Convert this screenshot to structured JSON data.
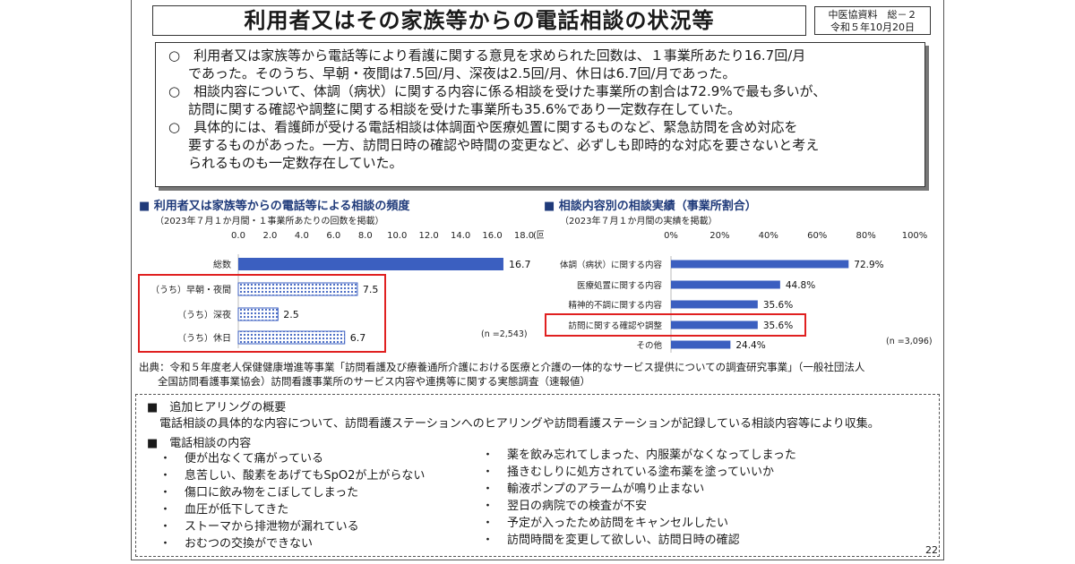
{
  "title": "利用者又はその家族等からの電話相談の状況等",
  "docref": {
    "line1": "中医協資料　総－２",
    "line2": "令和５年10月20日"
  },
  "summary": [
    {
      "text": "○　利用者又は家族等から電話等により看護に関する意見を求められた回数は、１事業所あたり16.7回/月",
      "indent": false
    },
    {
      "text": "であった。そのうち、早朝・夜間は7.5回/月、深夜は2.5回/月、休日は6.7回/月であった。",
      "indent": true
    },
    {
      "text": "○　相談内容について、体調（病状）に関する内容に係る相談を受けた事業所の割合は72.9%で最も多いが、",
      "indent": false
    },
    {
      "text": "訪問に関する確認や調整に関する相談を受けた事業所も35.6%であり一定数存在していた。",
      "indent": true
    },
    {
      "text": "○　具体的には、看護師が受ける電話相談は体調面や医療処置に関するものなど、緊急訪問を含め対応を",
      "indent": false
    },
    {
      "text": "要するものがあった。一方、訪問日時の確認や時間の変更など、必ずしも即時的な対応を要さないと考え",
      "indent": true
    },
    {
      "text": "られるものも一定数存在していた。",
      "indent": true
    }
  ],
  "chart_data": [
    {
      "type": "bar",
      "title": "■ 利用者又は家族等からの電話等による相談の頻度",
      "subtitle": "（2023年７月１か月間・１事業所あたりの回数を掲載）",
      "categories": [
        "総数",
        "（うち）早朝・夜間",
        "（うち）深夜",
        "（うち）休日"
      ],
      "values": [
        16.7,
        7.5,
        2.5,
        6.7
      ],
      "value_labels": [
        "16.7",
        "7.5",
        "2.5",
        "6.7"
      ],
      "ticks": [
        "0.0",
        "2.0",
        "4.0",
        "6.0",
        "8.0",
        "10.0",
        "12.0",
        "14.0",
        "16.0",
        "18.0"
      ],
      "unit": "(回)",
      "xlim": [
        0,
        18
      ],
      "n_label": "(n =2,543)",
      "highlight": [
        "（うち）早朝・夜間",
        "（うち）深夜",
        "（うち）休日"
      ],
      "colors": {
        "solid": "#3b5fc0",
        "pattern": "#3b5fc0",
        "highlight": "#e02020"
      }
    },
    {
      "type": "bar",
      "title": "■ 相談内容別の相談実績（事業所割合）",
      "subtitle": "（2023年７月１か月間の実績を掲載）",
      "categories": [
        "体調（病状）に関する内容",
        "医療処置に関する内容",
        "精神的不調に関する内容",
        "訪問に関する確認や調整",
        "その他"
      ],
      "values": [
        72.9,
        44.8,
        35.6,
        35.6,
        24.4
      ],
      "value_labels": [
        "72.9%",
        "44.8%",
        "35.6%",
        "35.6%",
        "24.4%"
      ],
      "ticks": [
        "0%",
        "20%",
        "40%",
        "60%",
        "80%",
        "100%"
      ],
      "xlim": [
        0,
        100
      ],
      "n_label": "(n =3,096)",
      "highlight": [
        "訪問に関する確認や調整"
      ],
      "colors": {
        "solid": "#3b5fc0",
        "highlight": "#e02020"
      }
    }
  ],
  "source": {
    "line1": "出典：令和５年度老人保健健康増進等事業「訪問看護及び療養通所介護における医療と介護の一体的なサービス提供についての調査研究事業」（一般社団法人",
    "line2": "全国訪問看護事業協会）訪問看護事業所のサービス内容や連携等に関する実態調査（速報値）"
  },
  "hearing": {
    "heading": "■　追加ヒアリングの概要",
    "desc": "電話相談の具体的な内容について、訪問看護ステーションへのヒアリングや訪問看護ステーションが記録している相談内容等により収集。",
    "content_heading": "■　電話相談の内容",
    "left_items": [
      "便が出なくて痛がっている",
      "息苦しい、酸素をあげてもSpO2が上がらない",
      "傷口に飲み物をこぼしてしまった",
      "血圧が低下してきた",
      "ストーマから排泄物が漏れている",
      "おむつの交換ができない"
    ],
    "right_items": [
      "薬を飲み忘れてしまった、内服薬がなくなってしまった",
      "掻きむしりに処方されている塗布薬を塗っていいか",
      "輸液ポンプのアラームが鳴り止まない",
      "翌日の病院での検査が不安",
      "予定が入ったため訪問をキャンセルしたい",
      "訪問時間を変更して欲しい、訪問日時の確認"
    ],
    "bullet": "・"
  },
  "page_number": "22"
}
